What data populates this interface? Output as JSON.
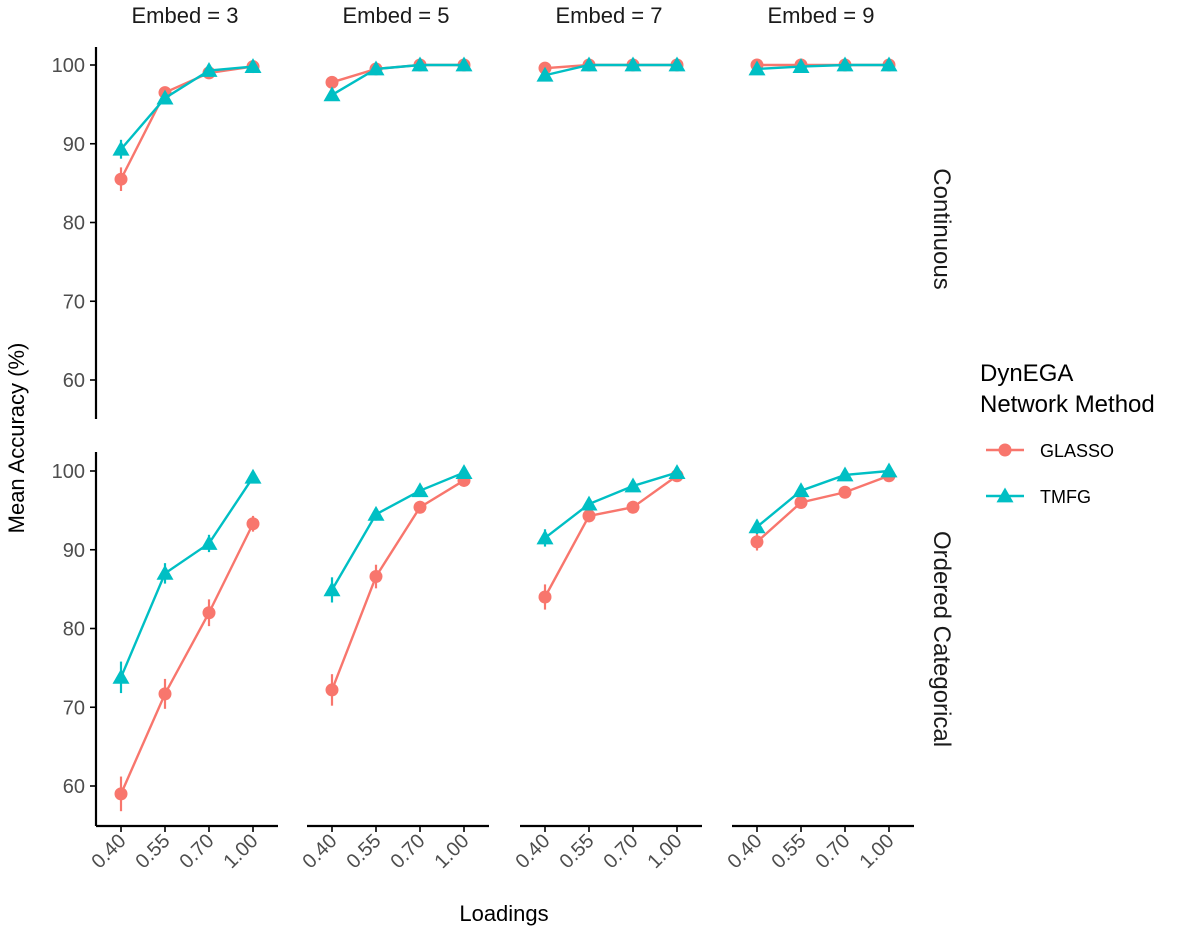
{
  "chart_data": {
    "type": "line",
    "ylabel": "Mean Accuracy (%)",
    "xlabel": "Loadings",
    "x_categories": [
      "0.40",
      "0.55",
      "0.70",
      "1.00"
    ],
    "y_ticks": [
      60,
      70,
      80,
      90,
      100
    ],
    "ylim": [
      55,
      102
    ],
    "legend": {
      "title_line1": "DynEGA",
      "title_line2": "Network Method",
      "position": "right"
    },
    "columns": [
      "Embed = 3",
      "Embed = 5",
      "Embed = 7",
      "Embed = 9"
    ],
    "rows": [
      "Continuous",
      "Ordered Categorical"
    ],
    "series": [
      {
        "name": "GLASSO",
        "color": "#F8766D",
        "shape": "circle"
      },
      {
        "name": "TMFG",
        "color": "#00BFC4",
        "shape": "triangle"
      }
    ],
    "panels": [
      {
        "row": 0,
        "col": 0,
        "GLASSO": [
          85.5,
          96.5,
          99.0,
          99.8
        ],
        "GLASSO_err": [
          1.5,
          0.6,
          0.3,
          0.1
        ],
        "TMFG": [
          89.3,
          95.8,
          99.3,
          99.8
        ],
        "TMFG_err": [
          1.2,
          0.6,
          0.3,
          0.1
        ]
      },
      {
        "row": 0,
        "col": 1,
        "GLASSO": [
          97.8,
          99.5,
          100.0,
          100.0
        ],
        "GLASSO_err": [
          0.4,
          0.2,
          0.0,
          0.0
        ],
        "TMFG": [
          96.2,
          99.5,
          100.0,
          100.0
        ],
        "TMFG_err": [
          0.6,
          0.2,
          0.0,
          0.0
        ]
      },
      {
        "row": 0,
        "col": 2,
        "GLASSO": [
          99.6,
          100.0,
          100.0,
          100.0
        ],
        "GLASSO_err": [
          0.2,
          0.0,
          0.0,
          0.0
        ],
        "TMFG": [
          98.7,
          100.0,
          100.0,
          100.0
        ],
        "TMFG_err": [
          0.3,
          0.0,
          0.0,
          0.0
        ]
      },
      {
        "row": 0,
        "col": 3,
        "GLASSO": [
          100.0,
          100.0,
          100.0,
          100.0
        ],
        "GLASSO_err": [
          0.0,
          0.0,
          0.0,
          0.0
        ],
        "TMFG": [
          99.5,
          99.8,
          100.0,
          100.0
        ],
        "TMFG_err": [
          0.1,
          0.1,
          0.0,
          0.0
        ]
      },
      {
        "row": 1,
        "col": 0,
        "GLASSO": [
          59.0,
          71.7,
          82.0,
          93.3
        ],
        "GLASSO_err": [
          2.2,
          1.9,
          1.7,
          1.0
        ],
        "TMFG": [
          73.8,
          87.0,
          90.8,
          99.2
        ],
        "TMFG_err": [
          2.0,
          1.3,
          1.1,
          0.3
        ]
      },
      {
        "row": 1,
        "col": 1,
        "GLASSO": [
          72.2,
          86.6,
          95.4,
          98.8
        ],
        "GLASSO_err": [
          2.0,
          1.5,
          0.8,
          0.4
        ],
        "TMFG": [
          84.9,
          94.5,
          97.5,
          99.8
        ],
        "TMFG_err": [
          1.6,
          0.8,
          0.4,
          0.1
        ]
      },
      {
        "row": 1,
        "col": 2,
        "GLASSO": [
          84.0,
          94.3,
          95.4,
          99.4
        ],
        "GLASSO_err": [
          1.6,
          0.8,
          0.8,
          0.2
        ],
        "TMFG": [
          91.5,
          95.8,
          98.1,
          99.8
        ],
        "TMFG_err": [
          1.1,
          0.6,
          0.3,
          0.1
        ]
      },
      {
        "row": 1,
        "col": 3,
        "GLASSO": [
          91.0,
          96.0,
          97.3,
          99.4
        ],
        "GLASSO_err": [
          1.1,
          0.6,
          0.4,
          0.2
        ],
        "TMFG": [
          92.9,
          97.5,
          99.5,
          100.0
        ],
        "TMFG_err": [
          0.9,
          0.4,
          0.1,
          0.0
        ]
      }
    ]
  }
}
